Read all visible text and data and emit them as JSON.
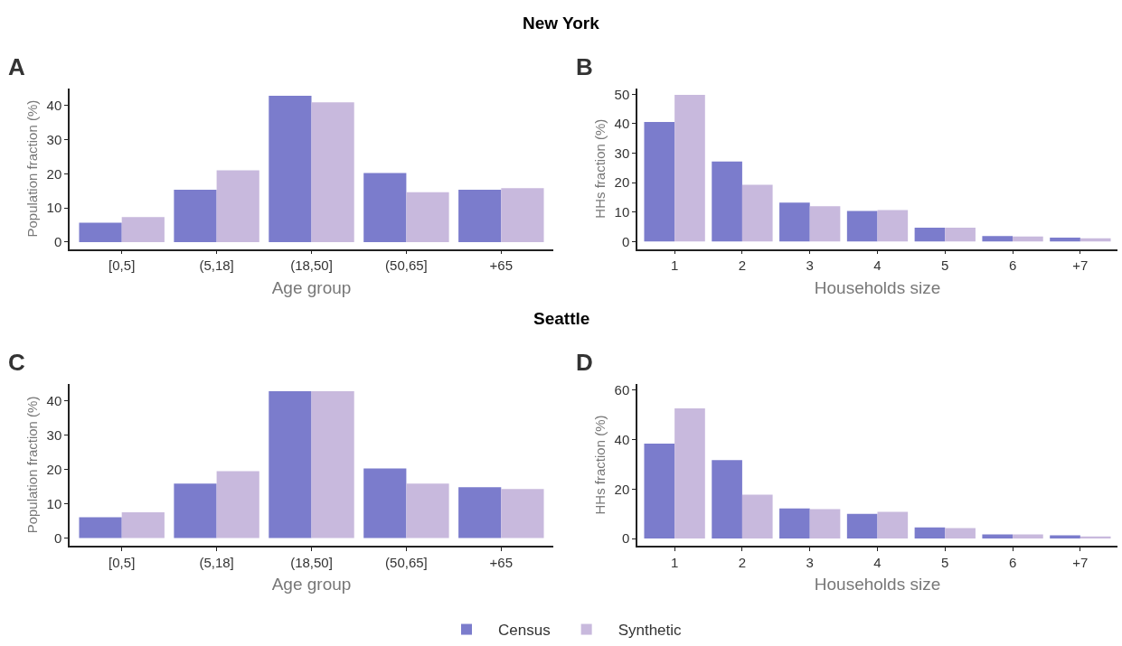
{
  "chart_data": [
    {
      "type": "bar",
      "title": "New York",
      "annotations": [
        "A"
      ],
      "xlabel": "Age group",
      "ylabel": "Population fraction (%)",
      "categories": [
        "[0,5]",
        "(5,18]",
        "(18,50]",
        "(50,65]",
        "+65"
      ],
      "series": [
        {
          "name": "Census",
          "color": "#7b7ccc",
          "values": [
            5.7,
            15.3,
            42.8,
            20.2,
            15.3
          ]
        },
        {
          "name": "Synthetic",
          "color": "#c8b9dd",
          "values": [
            7.3,
            21.0,
            40.9,
            14.6,
            15.8
          ]
        }
      ],
      "ylim": [
        -2,
        45
      ],
      "yticks": [
        0,
        10,
        20,
        30,
        40
      ],
      "legend": "bottom"
    },
    {
      "type": "bar",
      "annotations": [
        "B"
      ],
      "xlabel": "Households size",
      "ylabel": "HHs fraction (%)",
      "categories": [
        "1",
        "2",
        "3",
        "4",
        "5",
        "6",
        "+7"
      ],
      "series": [
        {
          "color": "#7b7ccc",
          "values": [
            40.6,
            27.2,
            13.2,
            10.4,
            4.7,
            1.9,
            1.3
          ]
        },
        {
          "color": "#c8b9dd",
          "values": [
            49.8,
            19.3,
            12.0,
            10.7,
            4.7,
            1.7,
            1.1
          ]
        }
      ],
      "ylim": [
        -2.5,
        52
      ],
      "yticks": [
        0,
        10,
        20,
        30,
        40,
        50
      ]
    },
    {
      "type": "bar",
      "title": "Seattle",
      "annotations": [
        "C"
      ],
      "xlabel": "Age group",
      "ylabel": "Population fraction (%)",
      "categories": [
        "[0,5]",
        "(5,18]",
        "(18,50]",
        "(50,65]",
        "+65"
      ],
      "series": [
        {
          "color": "#7b7ccc",
          "values": [
            6.1,
            15.9,
            42.8,
            20.3,
            14.8
          ]
        },
        {
          "color": "#c8b9dd",
          "values": [
            7.5,
            19.5,
            42.8,
            15.9,
            14.3
          ]
        }
      ],
      "ylim": [
        -2.3,
        45
      ],
      "yticks": [
        0,
        10,
        20,
        30,
        40
      ]
    },
    {
      "type": "bar",
      "annotations": [
        "D"
      ],
      "xlabel": "Households size",
      "ylabel": "HHs fraction (%)",
      "categories": [
        "1",
        "2",
        "3",
        "4",
        "5",
        "6",
        "+7"
      ],
      "series": [
        {
          "color": "#7b7ccc",
          "values": [
            38.4,
            31.7,
            12.2,
            10.0,
            4.5,
            1.7,
            1.3
          ]
        },
        {
          "color": "#c8b9dd",
          "values": [
            52.6,
            17.7,
            11.9,
            10.8,
            4.2,
            1.7,
            0.9
          ]
        }
      ],
      "ylim": [
        -3,
        62.6
      ],
      "yticks": [
        0,
        20,
        40,
        60
      ]
    }
  ]
}
